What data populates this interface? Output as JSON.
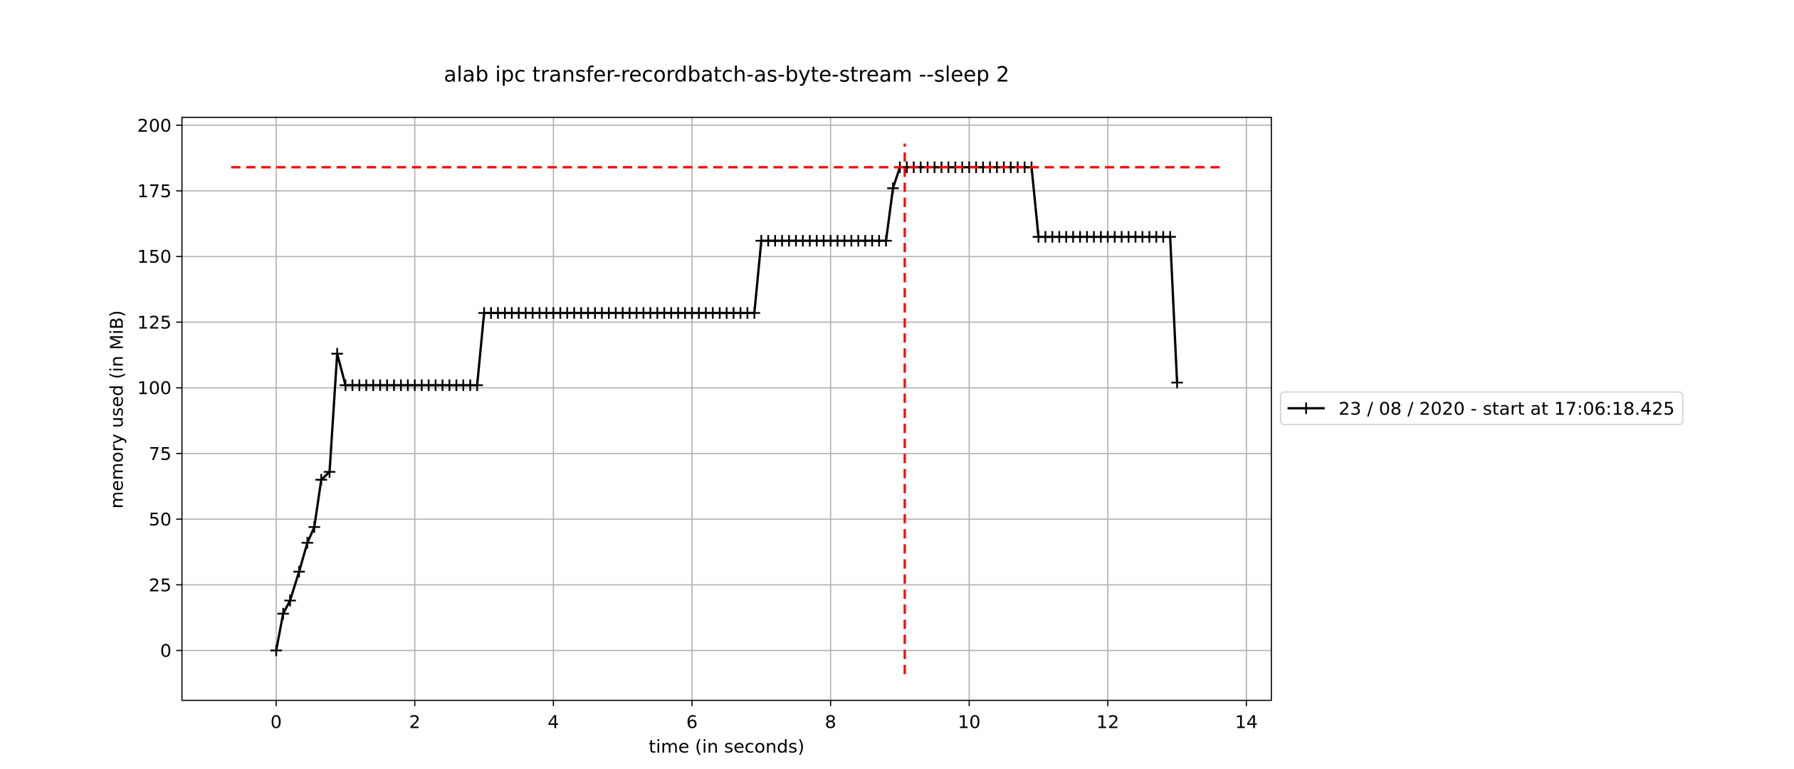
{
  "chart_data": {
    "type": "line",
    "title": "alab ipc transfer-recordbatch-as-byte-stream --sleep 2",
    "x_label": "time (in seconds)",
    "y_label": "memory used (in MiB)",
    "xlim": [
      -1.36,
      14.36
    ],
    "ylim": [
      -19,
      203
    ],
    "xticks": [
      0,
      2,
      4,
      6,
      8,
      10,
      12,
      14
    ],
    "yticks": [
      0,
      25,
      50,
      75,
      100,
      125,
      150,
      175,
      200
    ],
    "grid": true,
    "legend": "right",
    "series": [
      {
        "name": "23 / 08 / 2020 - start at 17:06:18.425",
        "color": "#000000",
        "x": [
          0,
          0.1,
          0.2,
          0.33,
          0.45,
          0.55,
          0.65,
          0.77,
          0.88,
          1.0,
          1.1,
          1.2,
          1.3,
          1.4,
          1.5,
          1.6,
          1.7,
          1.8,
          1.9,
          2.0,
          2.1,
          2.2,
          2.3,
          2.4,
          2.5,
          2.6,
          2.7,
          2.8,
          2.9,
          3.0,
          3.1,
          3.2,
          3.3,
          3.4,
          3.5,
          3.6,
          3.7,
          3.8,
          3.9,
          4.0,
          4.1,
          4.2,
          4.3,
          4.4,
          4.5,
          4.6,
          4.7,
          4.8,
          4.9,
          5.0,
          5.1,
          5.2,
          5.3,
          5.4,
          5.5,
          5.6,
          5.7,
          5.8,
          5.9,
          6.0,
          6.1,
          6.2,
          6.3,
          6.4,
          6.5,
          6.6,
          6.7,
          6.8,
          6.9,
          7.0,
          7.1,
          7.2,
          7.3,
          7.4,
          7.5,
          7.6,
          7.7,
          7.8,
          7.9,
          8.0,
          8.1,
          8.2,
          8.3,
          8.4,
          8.5,
          8.6,
          8.7,
          8.8,
          8.9,
          9.0,
          9.1,
          9.2,
          9.3,
          9.4,
          9.5,
          9.6,
          9.7,
          9.8,
          9.9,
          10.0,
          10.1,
          10.2,
          10.3,
          10.4,
          10.5,
          10.6,
          10.7,
          10.8,
          10.9,
          11.0,
          11.1,
          11.2,
          11.3,
          11.4,
          11.5,
          11.6,
          11.7,
          11.8,
          11.9,
          12.0,
          12.1,
          12.2,
          12.3,
          12.4,
          12.5,
          12.6,
          12.7,
          12.8,
          12.9,
          13.0
        ],
        "values": [
          0,
          14,
          19,
          30,
          41,
          47,
          65,
          68,
          113,
          101,
          101,
          101,
          101,
          101,
          101,
          101,
          101,
          101,
          101,
          101,
          101,
          101,
          101,
          101,
          101,
          101,
          101,
          101,
          101,
          128.5,
          128.5,
          128.5,
          128.5,
          128.5,
          128.5,
          128.5,
          128.5,
          128.5,
          128.5,
          128.5,
          128.5,
          128.5,
          128.5,
          128.5,
          128.5,
          128.5,
          128.5,
          128.5,
          128.5,
          128.5,
          128.5,
          128.5,
          128.5,
          128.5,
          128.5,
          128.5,
          128.5,
          128.5,
          128.5,
          128.5,
          128.5,
          128.5,
          128.5,
          128.5,
          128.5,
          128.5,
          128.5,
          128.5,
          128.5,
          156,
          156,
          156,
          156,
          156,
          156,
          156,
          156,
          156,
          156,
          156,
          156,
          156,
          156,
          156,
          156,
          156,
          156,
          156,
          176,
          184,
          184,
          184,
          184,
          184,
          184,
          184,
          184,
          184,
          184,
          184,
          184,
          184,
          184,
          184,
          184,
          184,
          184,
          184,
          184,
          157.5,
          157.5,
          157.5,
          157.5,
          157.5,
          157.5,
          157.5,
          157.5,
          157.5,
          157.5,
          157.5,
          157.5,
          157.5,
          157.5,
          157.5,
          157.5,
          157.5,
          157.5,
          157.5,
          157.5,
          102
        ]
      }
    ],
    "peak_line": {
      "color": "#ff0000",
      "y": 184,
      "xmin": -0.65,
      "xmax": 13.7
    },
    "peak_time_line": {
      "color": "#ff0000",
      "x": 9.07,
      "ymin": -9,
      "ymax": 193
    }
  }
}
